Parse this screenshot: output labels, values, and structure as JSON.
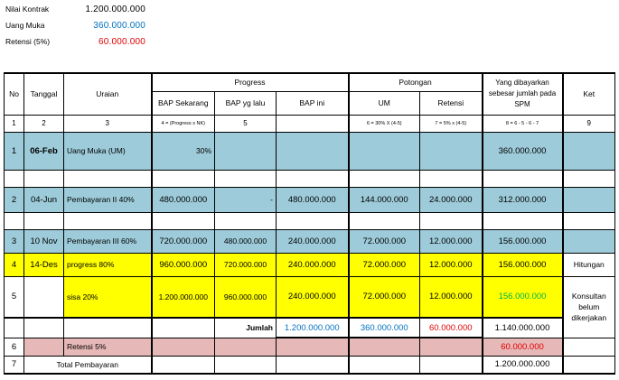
{
  "summary": {
    "nilai_kontrak_label": "Nilai Kontrak",
    "nilai_kontrak_value": "1.200.000.000",
    "uang_muka_label": "Uang Muka",
    "uang_muka_value": "360.000.000",
    "retensi_label": "Retensi (5%)",
    "retensi_value": "60.000.000"
  },
  "header": {
    "no": "No",
    "tanggal": "Tanggal",
    "uraian": "Uraian",
    "progress": "Progress",
    "bap_sekarang": "BAP Sekarang",
    "bap_lalu": "BAP yg lalu",
    "bap_ini": "BAP ini",
    "potongan": "Potongan",
    "um": "UM",
    "retensi": "Retensi",
    "yang_dibayarkan": "Yang dibayarkan sebesar jumlah pada SPM",
    "ket": "Ket",
    "idx1": "1",
    "idx2": "2",
    "idx3": "3",
    "idx4": "4 = (Progress x NK)",
    "idx5": "5",
    "idx6": "",
    "idx7": "6 = 30% X (4-5)",
    "idx8": "7 = 5% x (4-5)",
    "idx9": "8 = 6 - 5 - 6 - 7",
    "idx10": "9"
  },
  "rows": {
    "r1": {
      "no": "1",
      "tanggal": "06-Feb",
      "uraian": "Uang Muka (UM)",
      "bap_sekarang": "30%",
      "yang_dibayar": "360.000.000"
    },
    "r2": {
      "no": "2",
      "tanggal": "04-Jun",
      "uraian": "Pembayaran II 40%",
      "bap_sekarang": "480.000.000",
      "bap_lalu": "-",
      "bap_ini": "480.000.000",
      "um": "144.000.000",
      "retensi": "24.000.000",
      "yang_dibayar": "312.000.000"
    },
    "r3": {
      "no": "3",
      "tanggal": "10 Nov",
      "uraian": "Pembayaran III 60%",
      "bap_sekarang": "720.000.000",
      "bap_lalu": "480.000.000",
      "bap_ini": "240.000.000",
      "um": "72.000.000",
      "retensi": "12.000.000",
      "yang_dibayar": "156.000.000"
    },
    "r4": {
      "no": "4",
      "tanggal": "14-Des",
      "uraian": "progress 80%",
      "bap_sekarang": "960.000.000",
      "bap_lalu": "720.000.000",
      "bap_ini": "240.000.000",
      "um": "72.000.000",
      "retensi": "12.000.000",
      "yang_dibayar": "156.000.000",
      "ket": "Hitungan"
    },
    "r5": {
      "no": "5",
      "uraian": "sisa 20%",
      "bap_sekarang": "1.200.000.000",
      "bap_lalu": "960.000.000",
      "bap_ini": "240.000.000",
      "um": "72.000.000",
      "retensi": "12.000.000",
      "yang_dibayar": "156.000.000",
      "ket": "Konsultan belum dikerjakan"
    },
    "jumlah": {
      "label": "Jumlah",
      "bap_ini": "1.200.000.000",
      "um": "360.000.000",
      "retensi": "60.000.000",
      "yang_dibayar": "1.140.000.000"
    },
    "r6": {
      "no": "6",
      "uraian": "Retensi 5%",
      "yang_dibayar": "60.000.000"
    },
    "r7": {
      "no": "7",
      "uraian": "Total Pembayaran",
      "yang_dibayar": "1.200.000.000"
    }
  },
  "colors": {
    "blue_fill": "#9dcbd9",
    "yellow_fill": "#ffff00",
    "pink_fill": "#e6b8b7",
    "red_text": "#e00000",
    "blue_text": "#0070c0",
    "green_text": "#00b050"
  }
}
